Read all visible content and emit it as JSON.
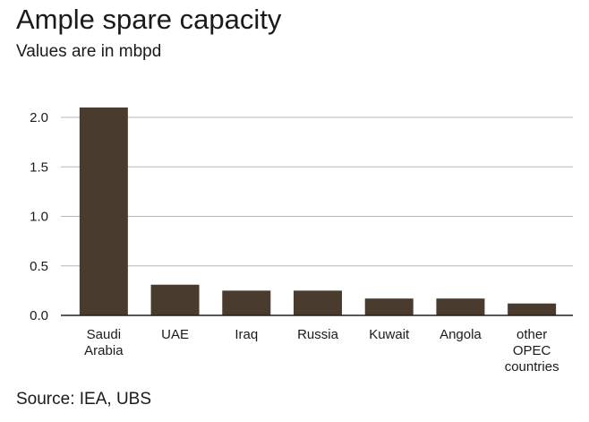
{
  "title": "Ample spare capacity",
  "subtitle": "Values are in mbpd",
  "source": "Source: IEA, UBS",
  "colors": {
    "bar": "#4a3b2f",
    "grid": "#b5b5b5",
    "axis": "#222222"
  },
  "chart_data": {
    "type": "bar",
    "title": "Ample spare capacity",
    "subtitle": "Values are in mbpd",
    "categories": [
      "Saudi Arabia",
      "UAE",
      "Iraq",
      "Russia",
      "Kuwait",
      "Angola",
      "other OPEC countries"
    ],
    "category_lines": [
      [
        "Saudi",
        "Arabia"
      ],
      [
        "UAE"
      ],
      [
        "Iraq"
      ],
      [
        "Russia"
      ],
      [
        "Kuwait"
      ],
      [
        "Angola"
      ],
      [
        "other",
        "OPEC",
        "countries"
      ]
    ],
    "values": [
      2.1,
      0.31,
      0.25,
      0.25,
      0.17,
      0.17,
      0.12
    ],
    "ylim": [
      0,
      2.0
    ],
    "yticks": [
      "0.0",
      "0.5",
      "1.0",
      "1.5",
      "2.0"
    ],
    "grid": true,
    "xlabel": "",
    "ylabel": ""
  }
}
